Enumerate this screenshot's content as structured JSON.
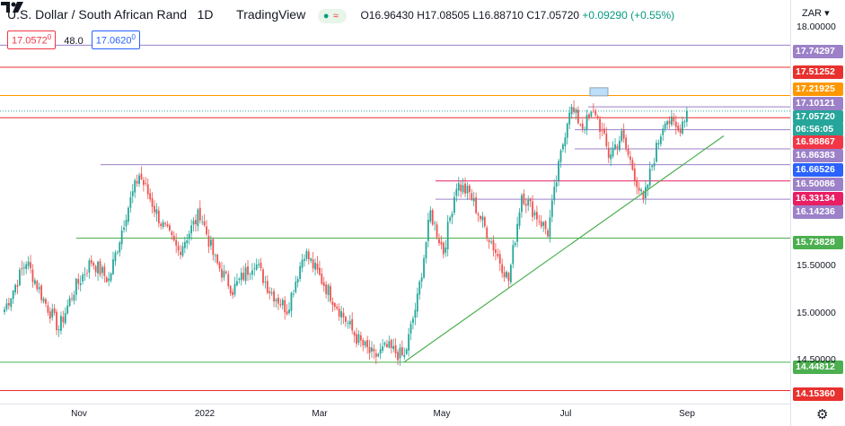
{
  "header": {
    "title": "U.S. Dollar / South African Rand",
    "interval": "1D",
    "source": "TradingView",
    "ohlc": {
      "o": "O16.96430",
      "h": "H17.08505",
      "l": "L16.88710",
      "c": "C17.05720",
      "chg": "+0.09290 (+0.55%)"
    },
    "sell": "17.0572",
    "sell_sup": "0",
    "spread": "48.0",
    "buy": "17.0620",
    "buy_sup": "0"
  },
  "axis": {
    "currency": "ZAR",
    "currency_arrow": "▾",
    "plain_labels": [
      "15.50000",
      "15.00000",
      "14.50000",
      "18.00000"
    ],
    "tags": [
      {
        "text": "17.74297",
        "color": "#9c80c8"
      },
      {
        "text": "17.51252",
        "color": "#e8312e"
      },
      {
        "text": "17.21925",
        "color": "#ff9800"
      },
      {
        "text": "17.10121",
        "color": "#9c80c8"
      },
      {
        "text": "17.05720",
        "color": "#26a69a"
      },
      {
        "text": "06:56:05",
        "color": "#26a69a"
      },
      {
        "text": "16.98867",
        "color": "#f23645"
      },
      {
        "text": "16.86383",
        "color": "#9c80c8"
      },
      {
        "text": "16.66526",
        "color": "#2962ff"
      },
      {
        "text": "16.50086",
        "color": "#9c80c8"
      },
      {
        "text": "16.33134",
        "color": "#e91e63"
      },
      {
        "text": "16.14236",
        "color": "#9c80c8"
      },
      {
        "text": "15.73828",
        "color": "#4caf50"
      },
      {
        "text": "14.44812",
        "color": "#4caf50"
      },
      {
        "text": "14.15360",
        "color": "#e8312e"
      }
    ]
  },
  "time_axis": [
    "Nov",
    "2022",
    "Mar",
    "May",
    "Jul",
    "Sep"
  ],
  "chart_data": {
    "type": "candlestick",
    "symbol": "USD/ZAR",
    "interval": "1D",
    "ylim": [
      14.0,
      18.1
    ],
    "x_range": [
      "2021-10",
      "2022-09"
    ],
    "levels": [
      {
        "value": 17.74297,
        "color": "#9c80c8"
      },
      {
        "value": 17.51252,
        "color": "#e8312e"
      },
      {
        "value": 17.21925,
        "color": "#ff9800"
      },
      {
        "value": 17.10121,
        "color": "#9c80c8"
      },
      {
        "value": 16.98867,
        "color": "#e8312e"
      },
      {
        "value": 16.86383,
        "color": "#9c80c8"
      },
      {
        "value": 16.66526,
        "color": "#9c80c8"
      },
      {
        "value": 16.50086,
        "color": "#9c80c8"
      },
      {
        "value": 16.33134,
        "color": "#e91e63"
      },
      {
        "value": 16.14236,
        "color": "#9c80c8"
      },
      {
        "value": 15.73828,
        "color": "#4caf50"
      },
      {
        "value": 14.44812,
        "color": "#4caf50"
      },
      {
        "value": 14.1536,
        "color": "#e8312e"
      }
    ],
    "trendline": {
      "from": {
        "x": "2022-04-20",
        "y": 14.45
      },
      "to": {
        "x": "2022-09-03",
        "y": 16.8
      },
      "color": "#4caf50"
    },
    "waypoints": [
      [
        0,
        15.0
      ],
      [
        10,
        15.5
      ],
      [
        18,
        15.1
      ],
      [
        25,
        14.8
      ],
      [
        32,
        15.2
      ],
      [
        40,
        15.5
      ],
      [
        48,
        15.3
      ],
      [
        56,
        16.0
      ],
      [
        62,
        16.4
      ],
      [
        72,
        15.9
      ],
      [
        80,
        15.6
      ],
      [
        90,
        16.0
      ],
      [
        97,
        15.5
      ],
      [
        105,
        15.2
      ],
      [
        115,
        15.5
      ],
      [
        122,
        15.2
      ],
      [
        130,
        15.0
      ],
      [
        138,
        15.6
      ],
      [
        146,
        15.3
      ],
      [
        154,
        15.0
      ],
      [
        162,
        14.7
      ],
      [
        170,
        14.5
      ],
      [
        176,
        14.6
      ],
      [
        184,
        14.5
      ],
      [
        190,
        15.1
      ],
      [
        196,
        16.0
      ],
      [
        202,
        15.6
      ],
      [
        208,
        16.3
      ],
      [
        214,
        16.2
      ],
      [
        220,
        15.9
      ],
      [
        226,
        15.6
      ],
      [
        232,
        15.3
      ],
      [
        238,
        16.2
      ],
      [
        244,
        16.0
      ],
      [
        250,
        15.8
      ],
      [
        256,
        16.6
      ],
      [
        260,
        17.1
      ],
      [
        266,
        16.9
      ],
      [
        272,
        17.05
      ],
      [
        278,
        16.6
      ],
      [
        284,
        16.8
      ],
      [
        290,
        16.4
      ],
      [
        294,
        16.1
      ],
      [
        298,
        16.5
      ],
      [
        304,
        17.0
      ],
      [
        310,
        16.85
      ],
      [
        314,
        17.057
      ]
    ]
  }
}
